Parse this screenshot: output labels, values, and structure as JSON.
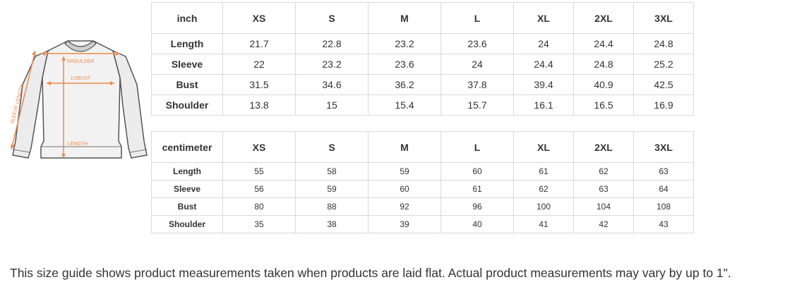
{
  "diagram": {
    "labels": {
      "shoulder": "SHOULDER",
      "bust": "1/2BUST",
      "length": "LENGTH",
      "sleeve": "SLEEVE LENGTH"
    }
  },
  "inch_table": {
    "unit_label": "inch",
    "sizes": [
      "XS",
      "S",
      "M",
      "L",
      "XL",
      "2XL",
      "3XL"
    ],
    "rows": [
      {
        "label": "Length",
        "values": [
          "21.7",
          "22.8",
          "23.2",
          "23.6",
          "24",
          "24.4",
          "24.8"
        ]
      },
      {
        "label": "Sleeve",
        "values": [
          "22",
          "23.2",
          "23.6",
          "24",
          "24.4",
          "24.8",
          "25.2"
        ]
      },
      {
        "label": "Bust",
        "values": [
          "31.5",
          "34.6",
          "36.2",
          "37.8",
          "39.4",
          "40.9",
          "42.5"
        ]
      },
      {
        "label": "Shoulder",
        "values": [
          "13.8",
          "15",
          "15.4",
          "15.7",
          "16.1",
          "16.5",
          "16.9"
        ]
      }
    ]
  },
  "cm_table": {
    "unit_label": "centimeter",
    "sizes": [
      "XS",
      "S",
      "M",
      "L",
      "XL",
      "2XL",
      "3XL"
    ],
    "rows": [
      {
        "label": "Length",
        "values": [
          "55",
          "58",
          "59",
          "60",
          "61",
          "62",
          "63"
        ]
      },
      {
        "label": "Sleeve",
        "values": [
          "56",
          "59",
          "60",
          "61",
          "62",
          "63",
          "64"
        ]
      },
      {
        "label": "Bust",
        "values": [
          "80",
          "88",
          "92",
          "96",
          "100",
          "104",
          "108"
        ]
      },
      {
        "label": "Shoulder",
        "values": [
          "35",
          "38",
          "39",
          "40",
          "41",
          "42",
          "43"
        ]
      }
    ]
  },
  "footer_note": "This size guide shows product measurements taken when products are laid flat. Actual product measurements may vary by up to 1\"."
}
